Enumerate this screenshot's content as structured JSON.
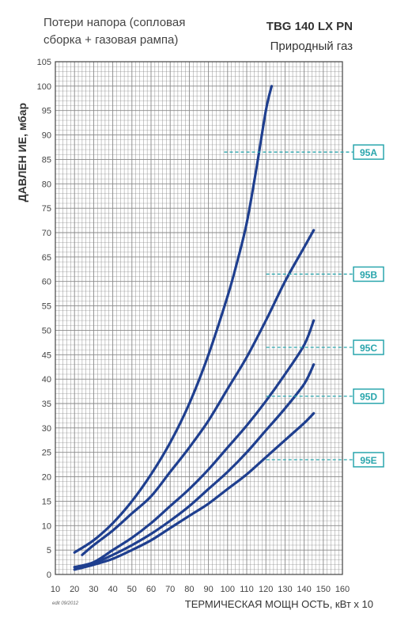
{
  "header": {
    "note": "Потери напора (сопловая сборка + газовая рампа)",
    "model": "TBG 140 LX PN",
    "fuel": "Природный газ"
  },
  "footer": {
    "stamp": "edit 09/2012"
  },
  "colors": {
    "curve": "#1f3f8f",
    "marker": "#2aa6ad",
    "grid": "#888888",
    "axis": "#444444"
  },
  "chart_data": {
    "type": "line",
    "xlabel": "ТЕРМИЧЕСКАЯ МОЩН ОСТЬ, кВт х 10",
    "ylabel": "ДАВЛЕН ИЕ, мбар",
    "xlim": [
      10,
      160
    ],
    "ylim": [
      0,
      105
    ],
    "x_ticks": [
      10,
      20,
      30,
      40,
      50,
      60,
      70,
      80,
      90,
      100,
      110,
      120,
      130,
      140,
      150,
      160
    ],
    "y_ticks": [
      0,
      5,
      10,
      15,
      20,
      25,
      30,
      35,
      40,
      45,
      50,
      55,
      60,
      65,
      70,
      75,
      80,
      85,
      90,
      95,
      100,
      105
    ],
    "grid": true,
    "series": [
      {
        "name": "95A",
        "x": [
          20,
          30,
          40,
          50,
          60,
          70,
          80,
          90,
          100,
          105,
          110,
          115,
          120,
          123
        ],
        "y": [
          4.5,
          7,
          10.5,
          15,
          20.5,
          27,
          35,
          45,
          57,
          64,
          72,
          83,
          95,
          100
        ],
        "marker_y": 86.5
      },
      {
        "name": "95B",
        "x": [
          24,
          30,
          40,
          50,
          60,
          70,
          80,
          90,
          100,
          110,
          120,
          130,
          140,
          145
        ],
        "y": [
          4,
          6,
          9,
          12.5,
          16,
          21,
          26,
          31.5,
          38,
          44.5,
          52,
          60,
          67,
          70.5
        ],
        "marker_y": 61.5
      },
      {
        "name": "95C",
        "x": [
          20,
          30,
          40,
          50,
          60,
          70,
          80,
          90,
          100,
          110,
          120,
          130,
          140,
          145
        ],
        "y": [
          1.5,
          2.5,
          5,
          7.5,
          10.5,
          14,
          17.5,
          21.5,
          26,
          30.5,
          35.5,
          41,
          47,
          52
        ],
        "marker_y": 46.5
      },
      {
        "name": "95D",
        "x": [
          20,
          30,
          40,
          50,
          60,
          70,
          80,
          90,
          100,
          110,
          120,
          130,
          140,
          145
        ],
        "y": [
          1.5,
          2.3,
          4,
          6,
          8.3,
          11,
          14,
          17.5,
          21,
          25,
          29.5,
          34,
          39,
          43
        ],
        "marker_y": 36.5
      },
      {
        "name": "95E",
        "x": [
          20,
          30,
          40,
          50,
          60,
          70,
          80,
          90,
          100,
          110,
          120,
          130,
          140,
          145
        ],
        "y": [
          1,
          2,
          3.2,
          5,
          7,
          9.5,
          12,
          14.5,
          17.5,
          20.5,
          24,
          27.5,
          31,
          33
        ],
        "marker_y": 23.5
      }
    ]
  }
}
